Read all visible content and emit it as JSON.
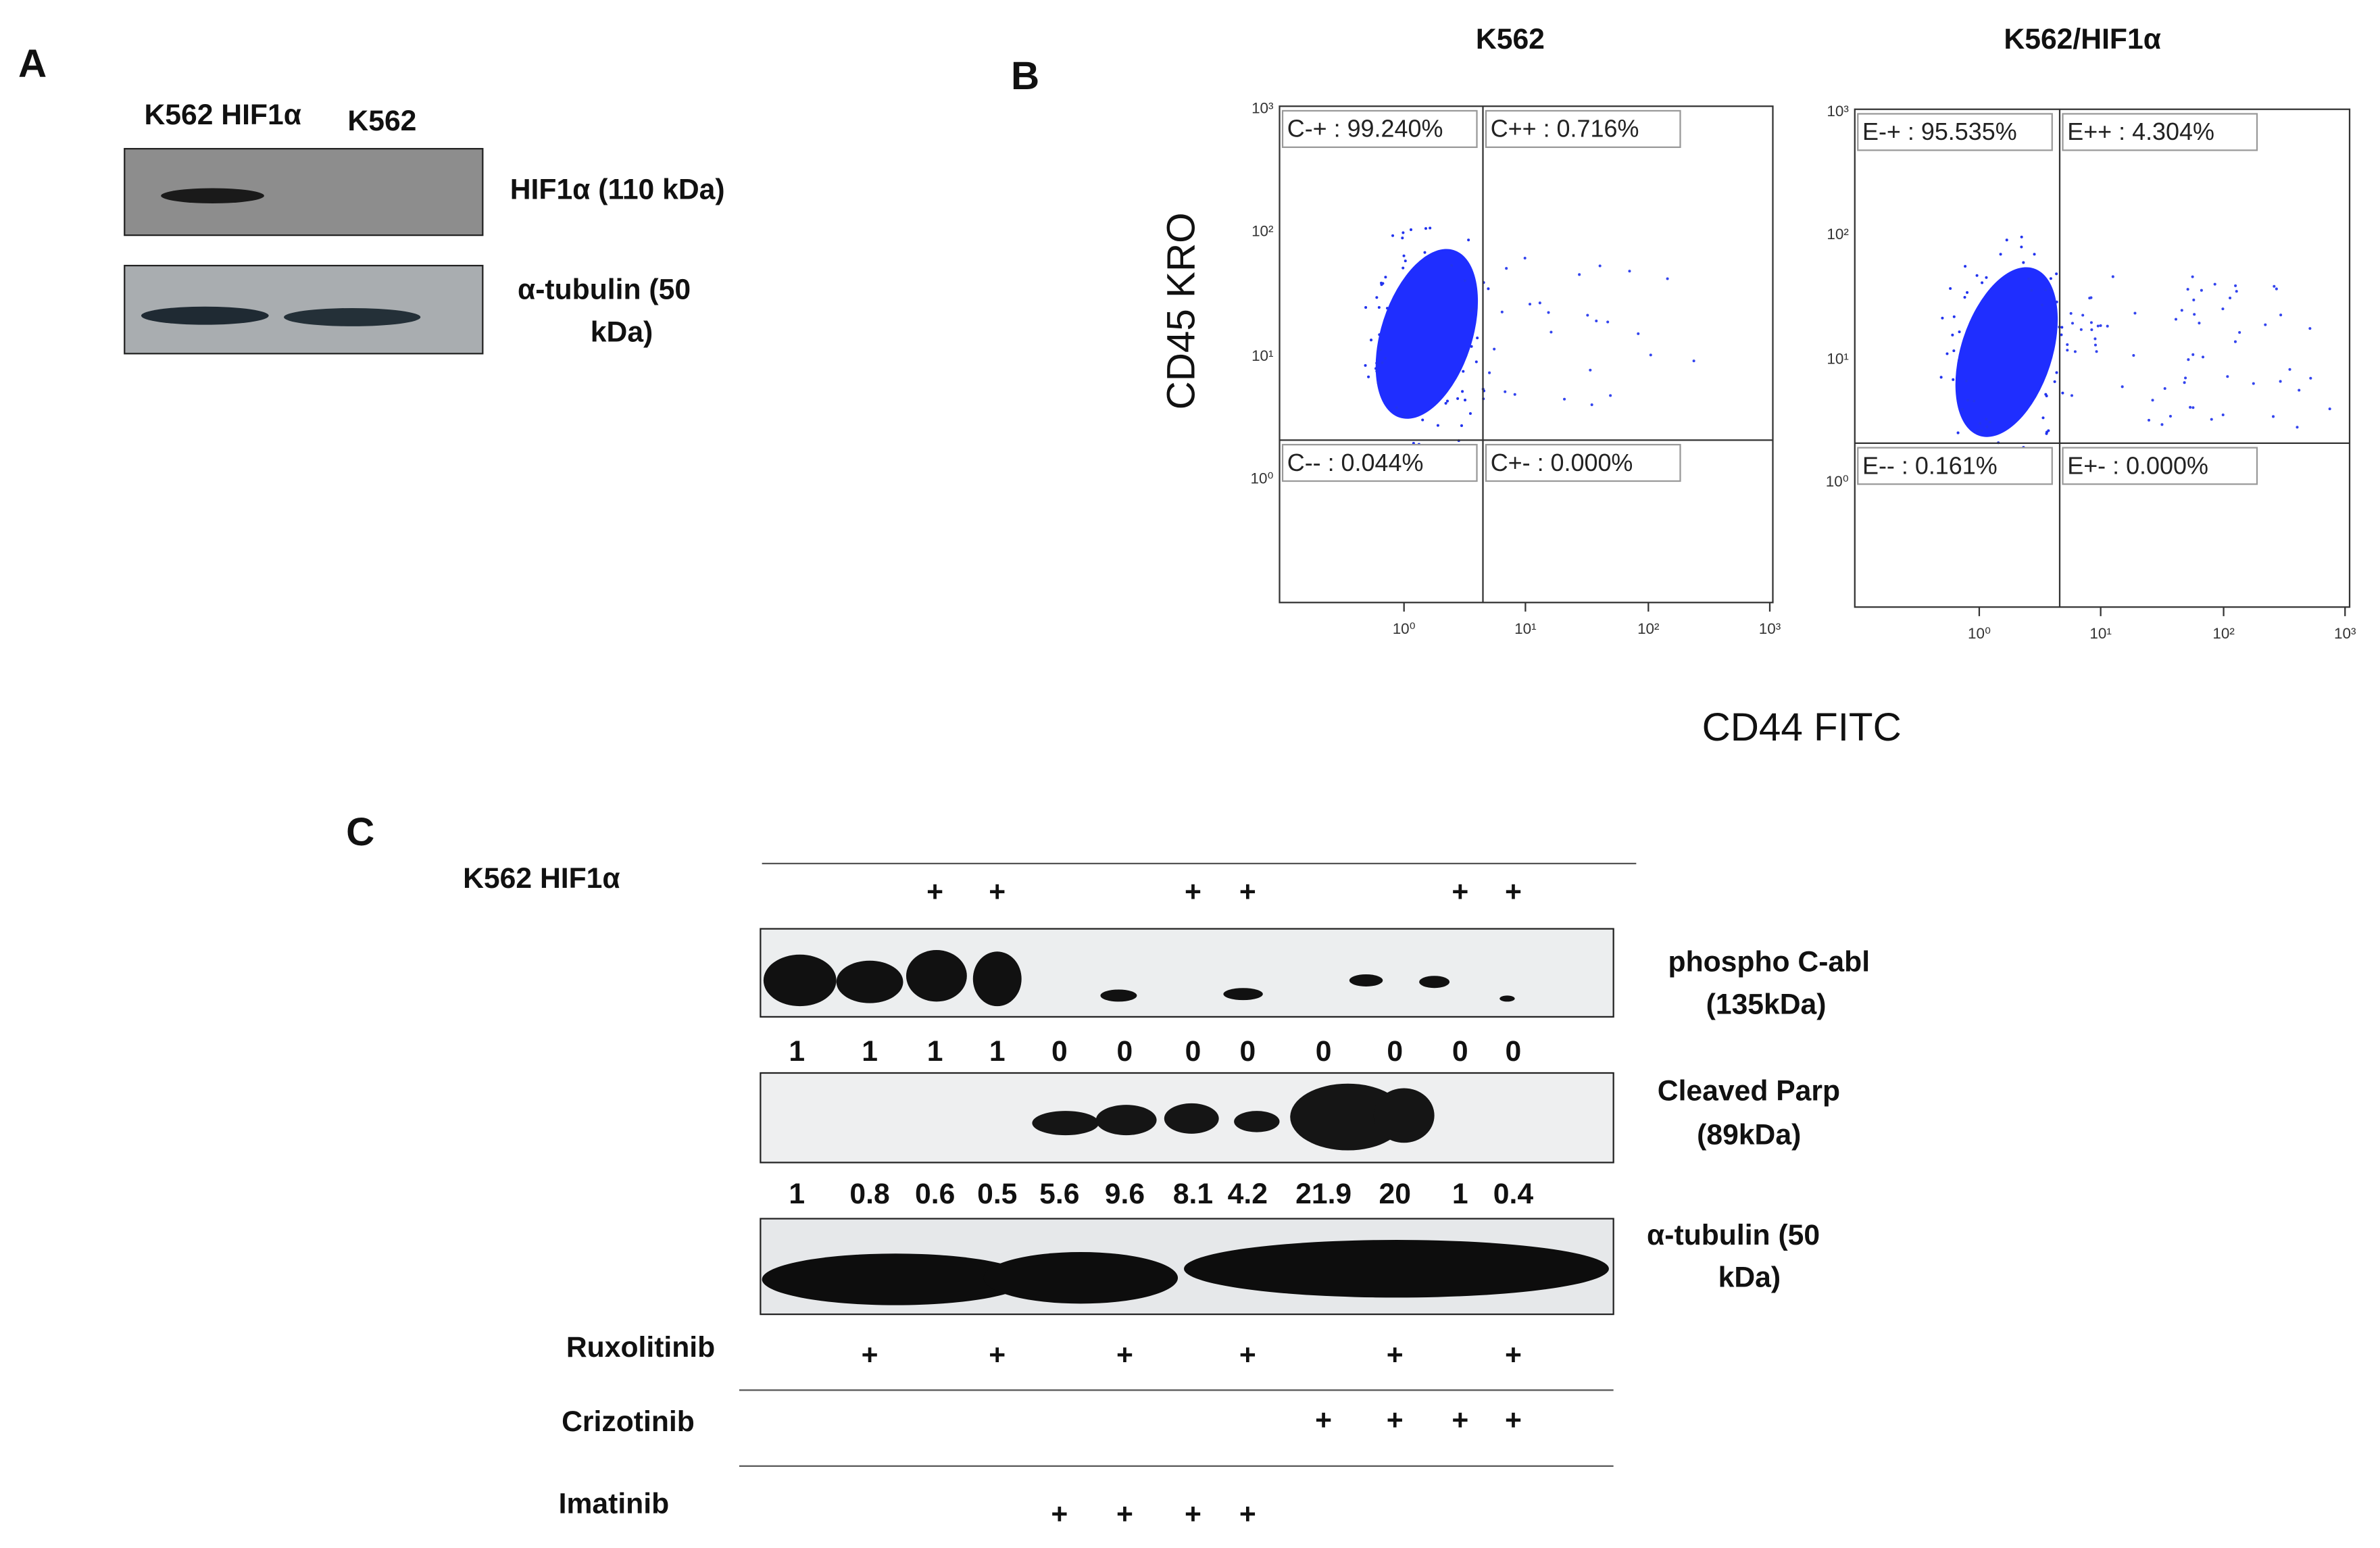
{
  "panel_a": {
    "label": "A",
    "lanes": [
      "K562 HIF1α",
      "K562"
    ],
    "bands": [
      [
        "HIF1α (110 kDa)"
      ],
      [
        "α-tubulin   (50",
        "kDa)"
      ]
    ]
  },
  "panel_b": {
    "label": "B",
    "y_axis": "CD45 KRO",
    "x_axis": "CD44  FITC",
    "ticks": [
      "10⁰",
      "10¹",
      "10²",
      "10³"
    ],
    "plots": [
      {
        "title": "K562",
        "quadrants": [
          "C-+ : 99.240%",
          "C++ : 0.716%",
          "C-- : 0.044%",
          "C+- : 0.000%"
        ]
      },
      {
        "title": "K562/HIF1α",
        "quadrants": [
          "E-+ : 95.535%",
          "E++ : 4.304%",
          "E-- : 0.161%",
          "E+- : 0.000%"
        ]
      }
    ]
  },
  "panel_c": {
    "label": "C",
    "treatments": [
      {
        "name": "K562 HIF1α",
        "marks": [
          null,
          null,
          "+",
          "+",
          null,
          null,
          "+",
          "+",
          null,
          null,
          "+",
          "+"
        ]
      },
      {
        "name": "Ruxolitinib",
        "marks": [
          null,
          "+",
          null,
          "+",
          null,
          "+",
          null,
          "+",
          null,
          "+",
          null,
          "+"
        ]
      },
      {
        "name": "Crizotinib",
        "marks": [
          null,
          null,
          null,
          null,
          null,
          null,
          null,
          null,
          "+",
          "+",
          "+",
          "+"
        ]
      },
      {
        "name": "Imatinib",
        "marks": [
          null,
          null,
          null,
          null,
          "+",
          "+",
          "+",
          "+",
          null,
          null,
          null,
          null
        ]
      }
    ],
    "blots": [
      {
        "label": [
          "phospho  C-abl",
          "(135kDa)"
        ],
        "quant": [
          1,
          1,
          1,
          1,
          0,
          0,
          0,
          0,
          0,
          0,
          0,
          0
        ]
      },
      {
        "label": [
          "Cleaved Parp",
          "(89kDa)"
        ],
        "quant": [
          1,
          0.8,
          0.6,
          0.5,
          5.6,
          9.6,
          8.1,
          4.2,
          21.9,
          20,
          1,
          0.4
        ]
      },
      {
        "label": [
          "α-tubulin   (50",
          "kDa)"
        ]
      }
    ]
  }
}
